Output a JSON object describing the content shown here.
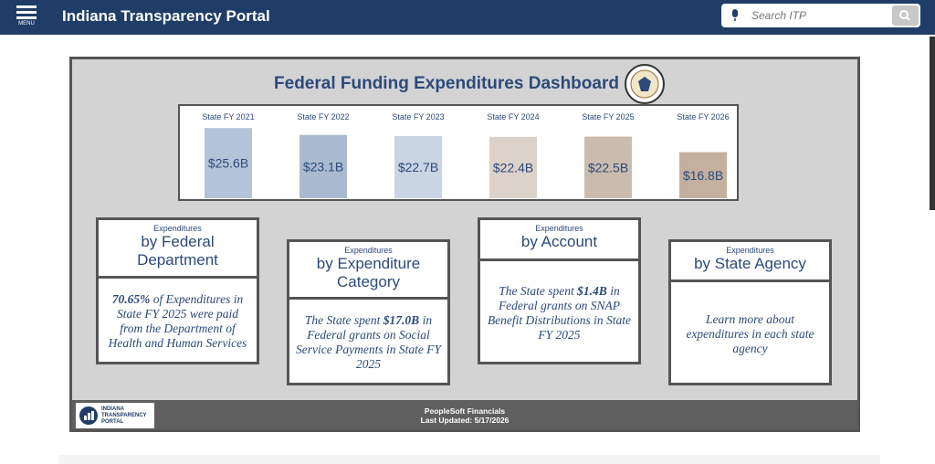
{
  "header": {
    "menu": "MENU",
    "title": "Indiana Transparency Portal",
    "search_placeholder": "Search ITP"
  },
  "dashboard": {
    "title": "Federal Funding Expenditures Dashboard",
    "chart_data": {
      "type": "bar",
      "categories": [
        "State FY 2021",
        "State FY 2022",
        "State FY 2023",
        "State FY 2024",
        "State FY 2025",
        "State FY 2026"
      ],
      "values": [
        25.6,
        23.1,
        22.7,
        22.4,
        22.5,
        16.8
      ],
      "value_labels": [
        "$25.6B",
        "$23.1B",
        "$22.7B",
        "$22.4B",
        "$22.5B",
        "$16.8B"
      ],
      "colors": [
        "#b4c4d8",
        "#aabbd1",
        "#c9d5e3",
        "#dcd2ca",
        "#c9bcaf",
        "#c3b09f"
      ]
    },
    "cards": [
      {
        "kicker": "Expenditures",
        "title": "by Federal Department",
        "body": [
          "70.65%",
          " of Expenditures in State FY 2025 were paid from the Department of Health and Human Services"
        ]
      },
      {
        "kicker": "Expenditures",
        "title": "by Expenditure Category",
        "body": [
          "The State spent ",
          "$17.0B",
          " in Federal grants on Social Service Payments in State FY 2025"
        ]
      },
      {
        "kicker": "Expenditures",
        "title": "by Account",
        "body": [
          "The State spent ",
          "$1.4B",
          " in Federal grants on SNAP Benefit Distributions in State FY 2025"
        ]
      },
      {
        "kicker": "Expenditures",
        "title": "by State Agency",
        "body": [
          "Learn more about expenditures in each state agency"
        ]
      }
    ],
    "footer": {
      "logo": [
        "INDIANA",
        "TRANSPARENCY",
        "PORTAL"
      ],
      "source": "PeopleSoft Financials",
      "updated": "Last Updated: 5/17/2026"
    }
  }
}
